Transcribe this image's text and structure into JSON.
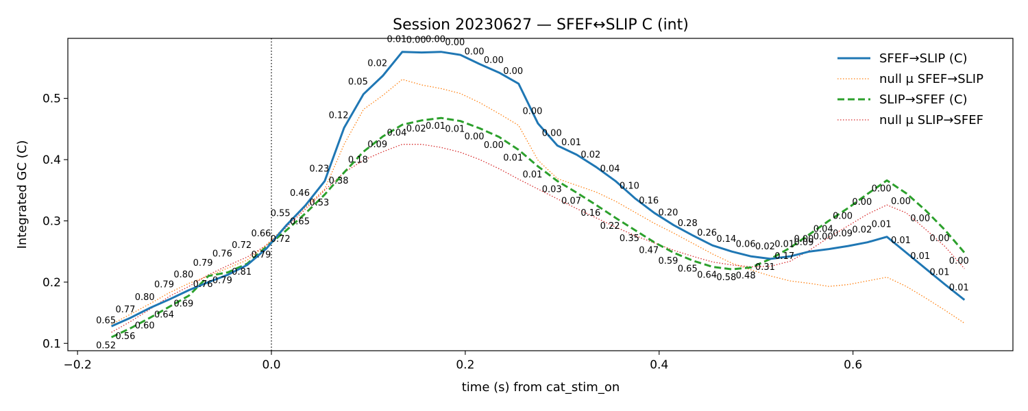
{
  "chart_data": {
    "type": "line",
    "title": "Session 20230627 — SFEF↔SLIP C (int)",
    "xlabel": "time (s) from cat_stim_on",
    "ylabel": "Integrated GC (C)",
    "xlim": [
      -0.21,
      0.765
    ],
    "ylim": [
      0.088,
      0.598
    ],
    "xticks": [
      -0.2,
      0.0,
      0.2,
      0.4,
      0.6
    ],
    "xtick_labels": [
      "−0.2",
      "0.0",
      "0.2",
      "0.4",
      "0.6"
    ],
    "yticks": [
      0.1,
      0.2,
      0.3,
      0.4,
      0.5
    ],
    "ytick_labels": [
      "0.1",
      "0.2",
      "0.3",
      "0.4",
      "0.5"
    ],
    "event_line_x": 0.0,
    "grid": false,
    "legend_position": "top-right",
    "x": [
      -0.165,
      -0.145,
      -0.125,
      -0.105,
      -0.085,
      -0.065,
      -0.045,
      -0.025,
      -0.005,
      0.015,
      0.035,
      0.055,
      0.075,
      0.095,
      0.115,
      0.135,
      0.155,
      0.175,
      0.195,
      0.215,
      0.235,
      0.255,
      0.275,
      0.295,
      0.315,
      0.335,
      0.355,
      0.375,
      0.395,
      0.415,
      0.435,
      0.455,
      0.475,
      0.495,
      0.515,
      0.535,
      0.555,
      0.575,
      0.595,
      0.615,
      0.635,
      0.655,
      0.675,
      0.695,
      0.715
    ],
    "series": [
      {
        "name": "SFEF→SLIP (C)",
        "style": "solid",
        "color": "#1f77b4",
        "values": [
          0.128,
          0.142,
          0.158,
          0.172,
          0.187,
          0.2,
          0.212,
          0.228,
          0.255,
          0.292,
          0.325,
          0.365,
          0.452,
          0.507,
          0.537,
          0.576,
          0.575,
          0.576,
          0.571,
          0.556,
          0.542,
          0.524,
          0.459,
          0.423,
          0.408,
          0.388,
          0.365,
          0.337,
          0.313,
          0.293,
          0.276,
          0.26,
          0.25,
          0.242,
          0.238,
          0.242,
          0.25,
          0.254,
          0.259,
          0.265,
          0.274,
          0.248,
          0.222,
          0.196,
          0.171
        ],
        "annotations": [
          "",
          "",
          "",
          "",
          "",
          "",
          "",
          "",
          "",
          "0.55",
          "0.46",
          "0.23",
          "0.12",
          "0.05",
          "0.02",
          "0.01",
          "0.00",
          "0.00",
          "0.00",
          "0.00",
          "0.00",
          "0.00",
          "0.00",
          "0.00",
          "0.01",
          "0.02",
          "0.04",
          "0.10",
          "0.16",
          "0.20",
          "0.28",
          "0.26",
          "0.14",
          "0.06",
          "0.02",
          "0.01",
          "0.00",
          "0.00",
          "0.09",
          "0.02",
          "0.01",
          "0.01",
          "0.01",
          "0.01",
          "0.01"
        ]
      },
      {
        "name": "null μ SFEF→SLIP",
        "style": "dotted",
        "color": "#ff7f0e",
        "values": [
          0.131,
          0.148,
          0.165,
          0.183,
          0.198,
          0.21,
          0.223,
          0.236,
          0.261,
          0.292,
          0.322,
          0.352,
          0.425,
          0.482,
          0.505,
          0.531,
          0.522,
          0.516,
          0.508,
          0.493,
          0.475,
          0.456,
          0.399,
          0.369,
          0.358,
          0.347,
          0.332,
          0.314,
          0.296,
          0.28,
          0.263,
          0.246,
          0.231,
          0.22,
          0.21,
          0.202,
          0.198,
          0.193,
          0.196,
          0.202,
          0.208,
          0.193,
          0.174,
          0.154,
          0.133
        ],
        "annotations": []
      },
      {
        "name": "SLIP→SFEF (C)",
        "style": "dashed",
        "color": "#2ca02c",
        "values": [
          0.11,
          0.125,
          0.142,
          0.16,
          0.178,
          0.21,
          0.216,
          0.23,
          0.258,
          0.284,
          0.312,
          0.343,
          0.379,
          0.413,
          0.438,
          0.457,
          0.464,
          0.468,
          0.463,
          0.451,
          0.437,
          0.416,
          0.389,
          0.365,
          0.346,
          0.326,
          0.305,
          0.285,
          0.265,
          0.248,
          0.235,
          0.225,
          0.221,
          0.224,
          0.238,
          0.256,
          0.278,
          0.3,
          0.321,
          0.344,
          0.366,
          0.345,
          0.317,
          0.285,
          0.248
        ],
        "annotations": [
          "0.52",
          "0.56",
          "0.60",
          "0.64",
          "0.69",
          "0.76",
          "0.79",
          "0.81",
          "0.79",
          "0.72",
          "0.65",
          "0.53",
          "0.38",
          "0.18",
          "0.09",
          "0.04",
          "0.02",
          "0.01",
          "0.01",
          "0.00",
          "0.00",
          "0.01",
          "0.01",
          "0.03",
          "0.07",
          "0.16",
          "0.22",
          "0.35",
          "0.47",
          "0.59",
          "0.65",
          "0.64",
          "0.58",
          "0.48",
          "0.31",
          "0.17",
          "0.09",
          "0.04",
          "0.00",
          "0.00",
          "0.00",
          "0.00",
          "0.00",
          "0.00",
          "0.00"
        ]
      },
      {
        "name": "null μ SLIP→SFEF",
        "style": "dotted",
        "color": "#d62728",
        "values": [
          0.118,
          0.136,
          0.156,
          0.177,
          0.193,
          0.212,
          0.227,
          0.241,
          0.26,
          0.289,
          0.319,
          0.35,
          0.379,
          0.399,
          0.413,
          0.425,
          0.425,
          0.42,
          0.412,
          0.4,
          0.385,
          0.368,
          0.352,
          0.336,
          0.32,
          0.305,
          0.29,
          0.276,
          0.264,
          0.252,
          0.242,
          0.233,
          0.228,
          0.225,
          0.226,
          0.234,
          0.252,
          0.273,
          0.292,
          0.311,
          0.326,
          0.313,
          0.286,
          0.258,
          0.222
        ],
        "annotations": [
          "0.65",
          "0.77",
          "0.80",
          "0.79",
          "0.80",
          "0.79",
          "0.76",
          "0.72",
          "0.66",
          "",
          "",
          "",
          "",
          "",
          "",
          "",
          "",
          "",
          "",
          "",
          "",
          "",
          "",
          "",
          "",
          "",
          "",
          "",
          "",
          "",
          "",
          "",
          "",
          "",
          "",
          "",
          "",
          "",
          "",
          "",
          "",
          "",
          "",
          "",
          ""
        ]
      }
    ]
  }
}
